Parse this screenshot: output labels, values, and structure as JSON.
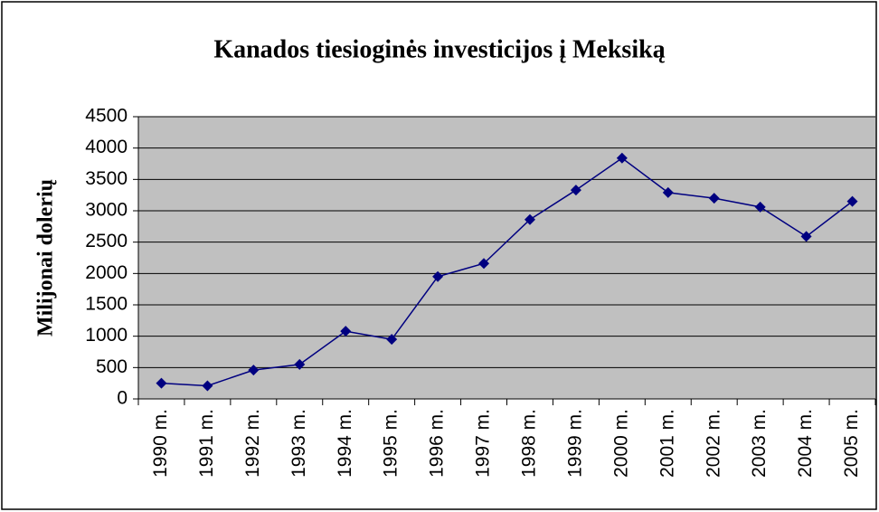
{
  "chart_data": {
    "type": "line",
    "title": "Kanados tiesioginės investicijos į Meksiką",
    "y_label": "Milijonai dolerių",
    "categories": [
      "1990 m.",
      "1991 m.",
      "1992 m.",
      "1993 m.",
      "1994 m.",
      "1995 m.",
      "1996 m.",
      "1997 m.",
      "1998 m.",
      "1999 m.",
      "2000 m.",
      "2001 m.",
      "2002 m.",
      "2003 m.",
      "2004 m.",
      "2005 m."
    ],
    "values": [
      250,
      210,
      460,
      550,
      1080,
      950,
      1950,
      2160,
      2860,
      3330,
      3840,
      3290,
      3200,
      3060,
      2590,
      3150
    ],
    "color": "#000080",
    "ylim": [
      0,
      4500
    ],
    "yticks": [
      0,
      500,
      1000,
      1500,
      2000,
      2500,
      3000,
      3500,
      4000,
      4500
    ],
    "grid": true
  }
}
